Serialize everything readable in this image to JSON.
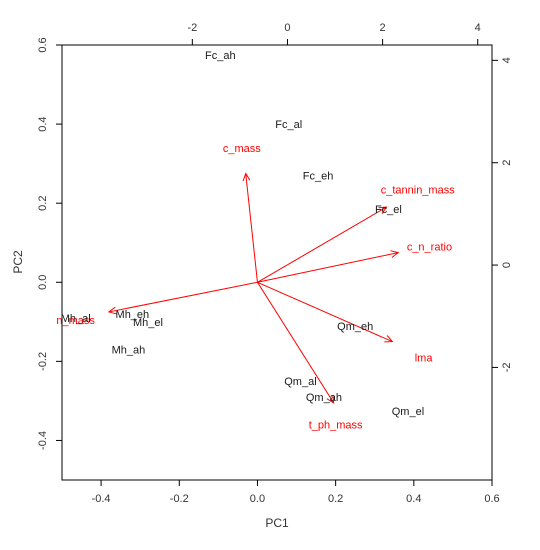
{
  "chart_data": {
    "type": "scatter",
    "subtype": "biplot",
    "title": "",
    "xlabel": "PC1",
    "ylabel": "PC2",
    "xlim": [
      -0.5,
      0.6
    ],
    "ylim": [
      -0.5,
      0.6
    ],
    "xticks": [
      "-0.4",
      "-0.2",
      "0.0",
      "0.2",
      "0.4",
      "0.6"
    ],
    "yticks": [
      "-0.4",
      "-0.2",
      "0.0",
      "0.2",
      "0.4",
      "0.6"
    ],
    "x_secondary_lim": [
      -4.74,
      4.3
    ],
    "y_secondary_lim": [
      -4.2,
      4.3
    ],
    "x_secondary_ticks": [
      "-2",
      "0",
      "2",
      "4"
    ],
    "y_secondary_ticks": [
      "-2",
      "0",
      "2",
      "4"
    ],
    "grid": false,
    "observation_color": "#000000",
    "variable_color": "#ff0000",
    "observations": [
      {
        "label": "Fc_ah",
        "x": -0.095,
        "y": 0.575
      },
      {
        "label": "Fc_al",
        "x": 0.08,
        "y": 0.4
      },
      {
        "label": "Fc_eh",
        "x": 0.155,
        "y": 0.27
      },
      {
        "label": "Fc_el",
        "x": 0.335,
        "y": 0.185
      },
      {
        "label": "Mh_al",
        "x": -0.465,
        "y": -0.09
      },
      {
        "label": "Mh_eh",
        "x": -0.32,
        "y": -0.08
      },
      {
        "label": "Mh_el",
        "x": -0.28,
        "y": -0.1
      },
      {
        "label": "Mh_ah",
        "x": -0.33,
        "y": -0.17
      },
      {
        "label": "Qm_eh",
        "x": 0.25,
        "y": -0.11
      },
      {
        "label": "Qm_al",
        "x": 0.11,
        "y": -0.25
      },
      {
        "label": "Qm_ah",
        "x": 0.17,
        "y": -0.29
      },
      {
        "label": "Qm_el",
        "x": 0.385,
        "y": -0.325
      }
    ],
    "variables": [
      {
        "label": "c_mass",
        "x": -0.03,
        "y": 0.275,
        "label_x": -0.04,
        "label_y": 0.34
      },
      {
        "label": "c_tannin_mass",
        "x": 0.33,
        "y": 0.19,
        "label_x": 0.41,
        "label_y": 0.235
      },
      {
        "label": "c_n_ratio",
        "x": 0.36,
        "y": 0.075,
        "label_x": 0.44,
        "label_y": 0.09
      },
      {
        "label": "lma",
        "x": 0.345,
        "y": -0.15,
        "label_x": 0.425,
        "label_y": -0.19
      },
      {
        "label": "t_ph_mass",
        "x": 0.195,
        "y": -0.305,
        "label_x": 0.2,
        "label_y": -0.36
      },
      {
        "label": "n_mass",
        "x": -0.38,
        "y": -0.075,
        "label_x": -0.465,
        "label_y": -0.095
      }
    ]
  }
}
